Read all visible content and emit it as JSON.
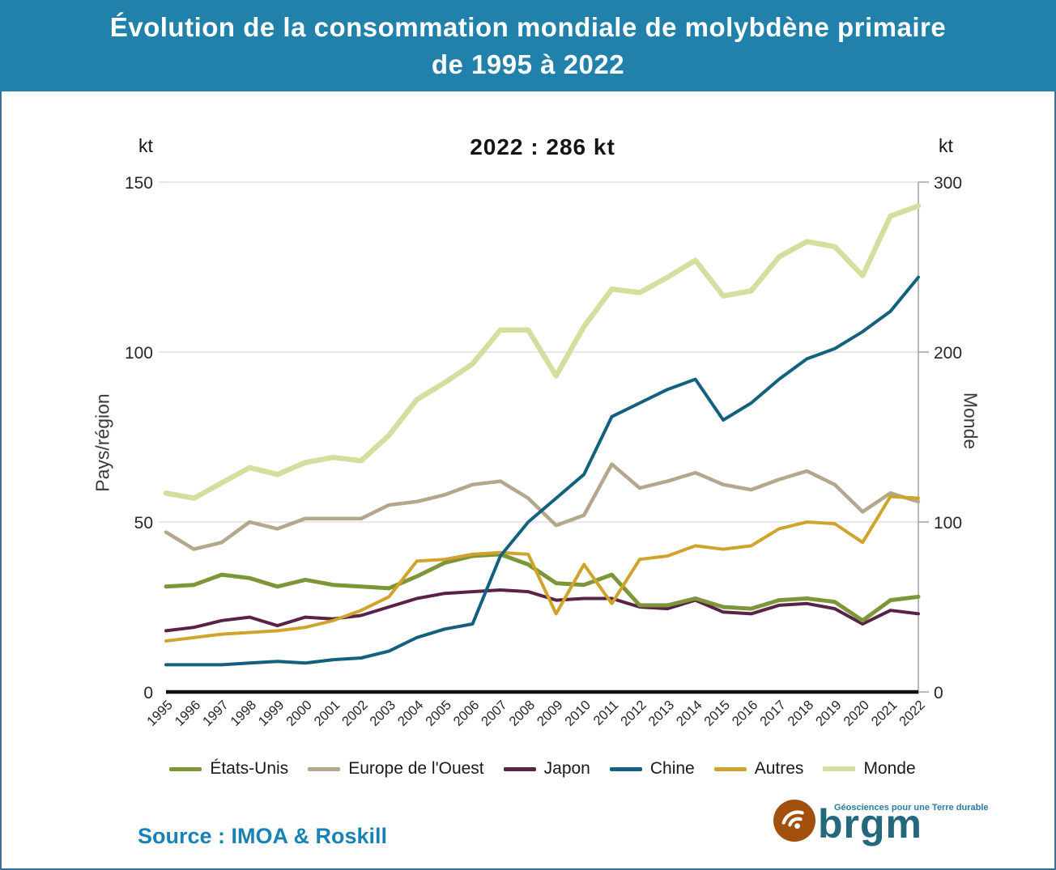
{
  "header": {
    "title_line1": "Évolution de la consommation mondiale de molybdène primaire",
    "title_line2": "de 1995 à 2022"
  },
  "annotation": "2022 : 286 kt",
  "axes": {
    "left": {
      "unit": "kt",
      "title": "Pays/région",
      "ticks": [
        0,
        50,
        100,
        150
      ],
      "max": 150
    },
    "right": {
      "unit": "kt",
      "title": "Monde",
      "ticks": [
        0,
        100,
        200,
        300
      ],
      "max": 300
    }
  },
  "chart_data": {
    "type": "line",
    "title": "Évolution de la consommation mondiale de molybdène primaire de 1995 à 2022",
    "x": [
      1995,
      1996,
      1997,
      1998,
      1999,
      2000,
      2001,
      2002,
      2003,
      2004,
      2005,
      2006,
      2007,
      2008,
      2009,
      2010,
      2011,
      2012,
      2013,
      2014,
      2015,
      2016,
      2017,
      2018,
      2019,
      2020,
      2021,
      2022
    ],
    "x_label_rotation": -45,
    "grid": true,
    "legend_position": "bottom",
    "ylim_left": [
      0,
      150
    ],
    "ylim_right": [
      0,
      300
    ],
    "ylabel_left": "Pays/région (kt)",
    "ylabel_right": "Monde (kt)",
    "series": [
      {
        "name": "États-Unis",
        "color": "#7d9639",
        "axis": "left",
        "width": 5,
        "z": 4,
        "values": [
          31,
          31.5,
          34.5,
          33.5,
          31,
          33,
          31.5,
          31,
          30.5,
          34,
          38,
          40,
          40.5,
          37.5,
          32,
          31.5,
          34.5,
          25.5,
          25.5,
          27.5,
          25,
          24.5,
          27,
          27.5,
          26.5,
          21,
          27,
          28
        ]
      },
      {
        "name": "Europe de l'Ouest",
        "color": "#b3a78c",
        "axis": "left",
        "width": 4.5,
        "z": 2,
        "values": [
          47,
          42,
          44,
          50,
          48,
          51,
          51,
          51,
          55,
          56,
          58,
          61,
          62,
          57,
          49,
          52,
          67,
          60,
          62,
          64.5,
          61,
          59.5,
          62.5,
          65,
          61,
          53,
          58.5,
          56
        ]
      },
      {
        "name": "Japon",
        "color": "#5a2246",
        "axis": "left",
        "width": 4,
        "z": 3,
        "values": [
          18,
          19,
          21,
          22,
          19.5,
          22,
          21.5,
          22.5,
          25,
          27.5,
          29,
          29.5,
          30,
          29.5,
          27,
          27.5,
          27.5,
          25,
          24.5,
          27,
          23.5,
          23,
          25.5,
          26,
          24.5,
          20,
          24,
          23
        ]
      },
      {
        "name": "Chine",
        "color": "#14607f",
        "axis": "left",
        "width": 4,
        "z": 6,
        "values": [
          8,
          8,
          8,
          8.5,
          9,
          8.5,
          9.5,
          10,
          12,
          16,
          18.5,
          20,
          40,
          50,
          57,
          64,
          81,
          85,
          89,
          92,
          80,
          85,
          92,
          98,
          101,
          106,
          112,
          122
        ]
      },
      {
        "name": "Autres",
        "color": "#d0a42c",
        "axis": "left",
        "width": 4,
        "z": 5,
        "values": [
          15,
          16,
          17,
          17.5,
          18,
          19,
          21,
          24,
          28,
          38.5,
          39,
          40.5,
          41,
          40.5,
          23,
          37.5,
          26,
          39,
          40,
          43,
          42,
          43,
          48,
          50,
          49.5,
          44,
          57.5,
          57
        ]
      },
      {
        "name": "Monde",
        "color": "#d5de9f",
        "axis": "right",
        "width": 6.5,
        "z": 1,
        "values": [
          117,
          114,
          123,
          132,
          128,
          135,
          138,
          136,
          151,
          172,
          182,
          193,
          213,
          213,
          186,
          215,
          237,
          235,
          244,
          254,
          233,
          236,
          256,
          265,
          262,
          245,
          280,
          286
        ]
      }
    ]
  },
  "source": {
    "text": "Source : IMOA & Roskill"
  },
  "logo": {
    "brand": "brgm",
    "tagline": "Géosciences pour une Terre durable"
  },
  "colors": {
    "header_bg": "#2181ab",
    "border": "#3e6f97",
    "source_text": "#1982b4",
    "grid": "#d9d9d9",
    "axis_line": "#111111",
    "right_axis_line": "#9b9b9b",
    "tick_text": "#262626",
    "annotation_text": "#141414",
    "logo_circle": "#a3500f",
    "logo_text": "#23687c",
    "logo_tagline": "#2a7ca4"
  }
}
